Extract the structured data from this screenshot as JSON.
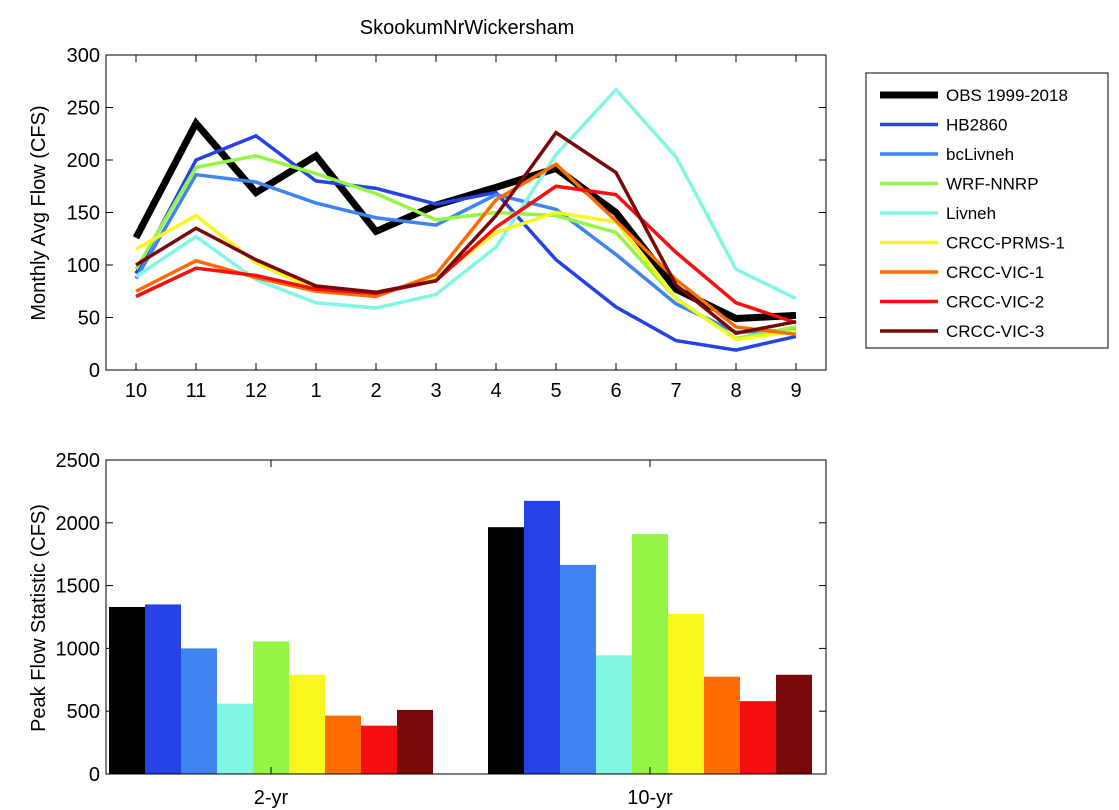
{
  "title": "SkookumNrWickersham",
  "chart_data": [
    {
      "type": "line",
      "ylabel": "Monthly Avg Flow (CFS)",
      "xlabel": "",
      "categories": [
        "10",
        "11",
        "12",
        "1",
        "2",
        "3",
        "4",
        "5",
        "6",
        "7",
        "8",
        "9"
      ],
      "ylim": [
        0,
        300
      ],
      "yticks": [
        "0",
        "50",
        "100",
        "150",
        "200",
        "250",
        "300"
      ],
      "grid": false,
      "legend_position": "right",
      "series": [
        {
          "name": "OBS 1999-2018",
          "color": "#000000",
          "values": [
            126,
            235,
            169,
            204,
            132,
            157,
            174,
            192,
            150,
            77,
            49,
            52
          ]
        },
        {
          "name": "HB2860",
          "color": "#2442e6",
          "values": [
            92,
            200,
            223,
            180,
            173,
            158,
            169,
            105,
            60,
            28,
            19,
            32
          ]
        },
        {
          "name": "bcLivneh",
          "color": "#3f84f0",
          "values": [
            87,
            186,
            179,
            159,
            145,
            138,
            167,
            153,
            110,
            63,
            36,
            38
          ]
        },
        {
          "name": "WRF-NNRP",
          "color": "#94f545",
          "values": [
            96,
            193,
            204,
            187,
            168,
            143,
            150,
            147,
            131,
            68,
            30,
            41
          ]
        },
        {
          "name": "Livneh",
          "color": "#80f7e3",
          "values": [
            89,
            127,
            86,
            64,
            59,
            72,
            117,
            205,
            267,
            203,
            96,
            68
          ]
        },
        {
          "name": "CRCC-PRMS-1",
          "color": "#f7f71e",
          "values": [
            115,
            147,
            102,
            76,
            72,
            87,
            131,
            150,
            141,
            68,
            29,
            37
          ]
        },
        {
          "name": "CRCC-VIC-1",
          "color": "#fe6b00",
          "values": [
            75,
            104,
            88,
            75,
            70,
            91,
            162,
            196,
            142,
            86,
            41,
            34
          ]
        },
        {
          "name": "CRCC-VIC-2",
          "color": "#f70f0f",
          "values": [
            70,
            97,
            90,
            77,
            73,
            85,
            136,
            175,
            167,
            112,
            64,
            45
          ]
        },
        {
          "name": "CRCC-VIC-3",
          "color": "#7b0808",
          "values": [
            100,
            135,
            105,
            80,
            74,
            85,
            147,
            226,
            188,
            81,
            35,
            46
          ]
        }
      ]
    },
    {
      "type": "bar",
      "ylabel": "Peak Flow Statistic (CFS)",
      "xlabel": "",
      "categories": [
        "2-yr",
        "10-yr"
      ],
      "ylim": [
        0,
        2500
      ],
      "yticks": [
        "0",
        "500",
        "1000",
        "1500",
        "2000",
        "2500"
      ],
      "grid": false,
      "series": [
        {
          "name": "OBS 1999-2018",
          "color": "#000000",
          "values": [
            1330,
            1965
          ]
        },
        {
          "name": "HB2860",
          "color": "#2442e6",
          "values": [
            1350,
            2175
          ]
        },
        {
          "name": "bcLivneh",
          "color": "#3f84f0",
          "values": [
            1000,
            1665
          ]
        },
        {
          "name": "Livneh",
          "color": "#80f7e3",
          "values": [
            560,
            945
          ]
        },
        {
          "name": "WRF-NNRP",
          "color": "#94f545",
          "values": [
            1055,
            1910
          ]
        },
        {
          "name": "CRCC-PRMS-1",
          "color": "#f7f71e",
          "values": [
            790,
            1275
          ]
        },
        {
          "name": "CRCC-VIC-1",
          "color": "#fe6b00",
          "values": [
            465,
            775
          ]
        },
        {
          "name": "CRCC-VIC-2",
          "color": "#f70f0f",
          "values": [
            385,
            580
          ]
        },
        {
          "name": "CRCC-VIC-3",
          "color": "#7b0808",
          "values": [
            510,
            790
          ]
        }
      ]
    }
  ]
}
